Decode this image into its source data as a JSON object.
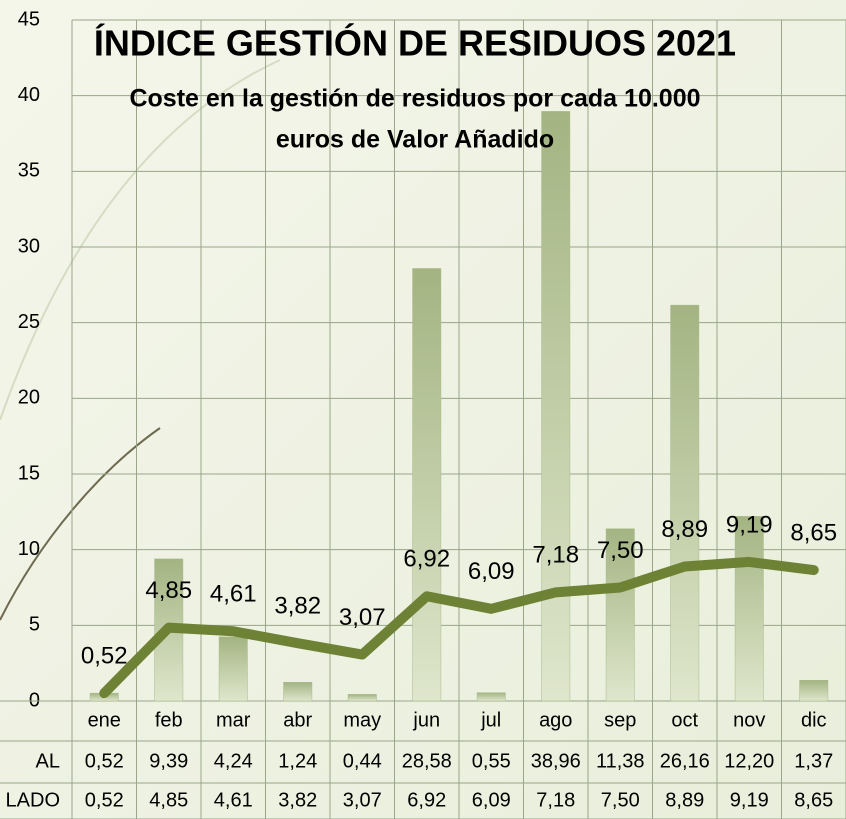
{
  "chart_data": {
    "type": "bar-line",
    "title": "ÍNDICE GESTIÓN DE RESIDUOS 2021",
    "subtitle": [
      "Coste en la gestión de residuos por cada 10.000",
      "euros de Valor Añadido"
    ],
    "categories": [
      "ene",
      "feb",
      "mar",
      "abr",
      "may",
      "jun",
      "jul",
      "ago",
      "sep",
      "oct",
      "nov",
      "dic"
    ],
    "series": [
      {
        "name": "AL",
        "type": "bar",
        "color": "#a9b98a",
        "values": [
          0.52,
          9.39,
          4.24,
          1.24,
          0.44,
          28.58,
          0.55,
          38.96,
          11.38,
          26.16,
          12.2,
          1.37
        ],
        "value_labels": [
          "0,52",
          "9,39",
          "4,24",
          "1,24",
          "0,44",
          "28,58",
          "0,55",
          "38,96",
          "11,38",
          "26,16",
          "12,20",
          "1,37"
        ]
      },
      {
        "name": "LADO",
        "type": "line",
        "color": "#6e8236",
        "values": [
          0.52,
          4.85,
          4.61,
          3.82,
          3.07,
          6.92,
          6.09,
          7.18,
          7.5,
          8.89,
          9.19,
          8.65
        ],
        "value_labels": [
          "0,52",
          "4,85",
          "4,61",
          "3,82",
          "3,07",
          "6,92",
          "6,09",
          "7,18",
          "7,50",
          "8,89",
          "9,19",
          "8,65"
        ]
      }
    ],
    "ylim": [
      0,
      45
    ],
    "yticks": [
      0,
      5,
      10,
      15,
      20,
      25,
      30,
      35,
      40,
      45
    ],
    "grid": true
  }
}
